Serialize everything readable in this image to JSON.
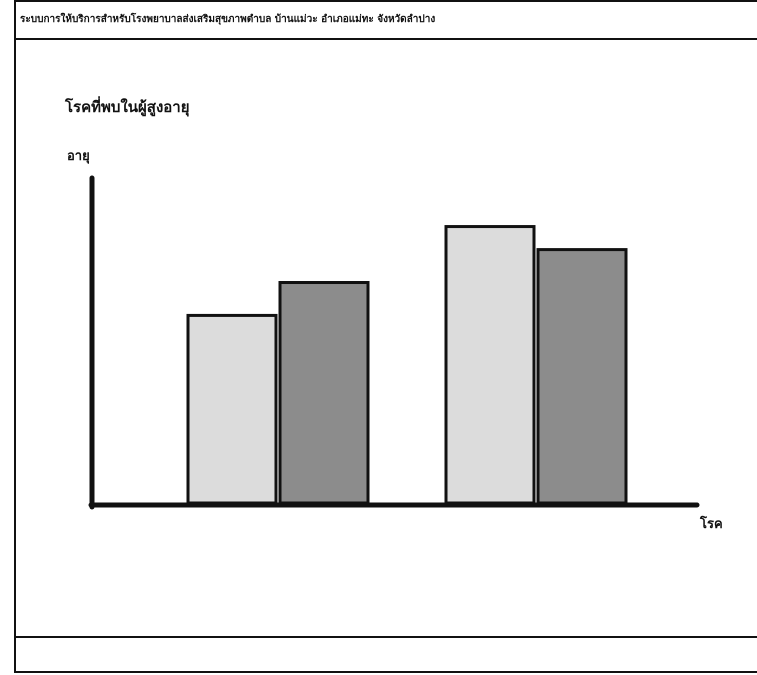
{
  "header": {
    "title": "ระบบการให้บริการสำหรับโรงพยาบาลส่งเสริมสุขภาพตำบล บ้านแม่วะ อำเภอแม่ทะ จังหวัดลำปาง"
  },
  "colors": {
    "bar_light": "#dcdcdc",
    "bar_dark": "#8c8c8c",
    "stroke": "#111111"
  },
  "chart_data": {
    "type": "bar",
    "title": "โรคที่พบในผู้สูงอายุ",
    "xlabel": "โรค",
    "ylabel": "อายุ",
    "categories": [
      "",
      ""
    ],
    "series": [
      {
        "values": [
          57,
          84
        ]
      },
      {
        "values": [
          67,
          77
        ]
      }
    ],
    "ylim": [
      0,
      110
    ],
    "grid": false,
    "legend": "none"
  }
}
